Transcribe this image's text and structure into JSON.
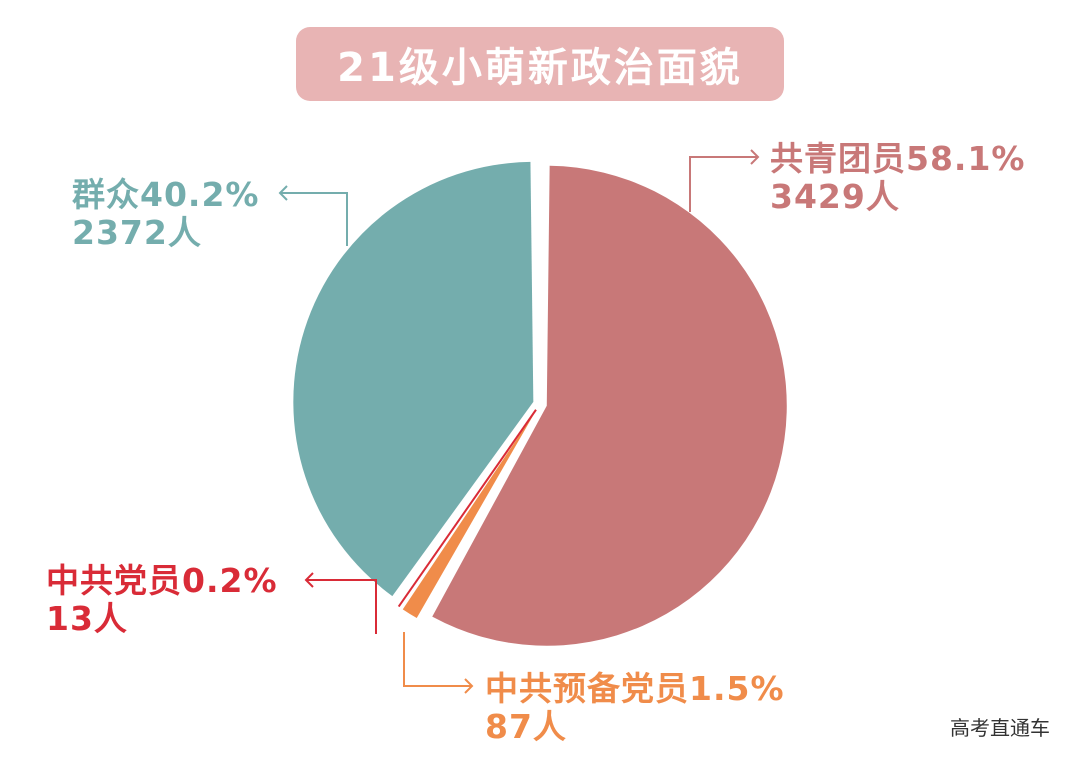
{
  "colors": {
    "title_bg": "#e8b4b4",
    "tuanyuan": "#c87878",
    "qunzhong": "#74adad",
    "yubei": "#f08c4a",
    "dangyuan": "#d92b37"
  },
  "chart_data": {
    "type": "pie",
    "title": "21级小萌新政治面貌",
    "slices": [
      {
        "key": "tuanyuan",
        "label": "共青团员",
        "percent": 58.1,
        "percent_text": "58.1%",
        "count_text": "3429人",
        "value": 3429
      },
      {
        "key": "yubei",
        "label": "中共预备党员",
        "percent": 1.5,
        "percent_text": "1.5%",
        "count_text": "87人",
        "value": 87
      },
      {
        "key": "dangyuan",
        "label": "中共党员",
        "percent": 0.2,
        "percent_text": "0.2%",
        "count_text": "13人",
        "value": 13
      },
      {
        "key": "qunzhong",
        "label": "群众",
        "percent": 40.2,
        "percent_text": "40.2%",
        "count_text": "2372人",
        "value": 2372
      }
    ]
  },
  "watermark": "高考直通车"
}
